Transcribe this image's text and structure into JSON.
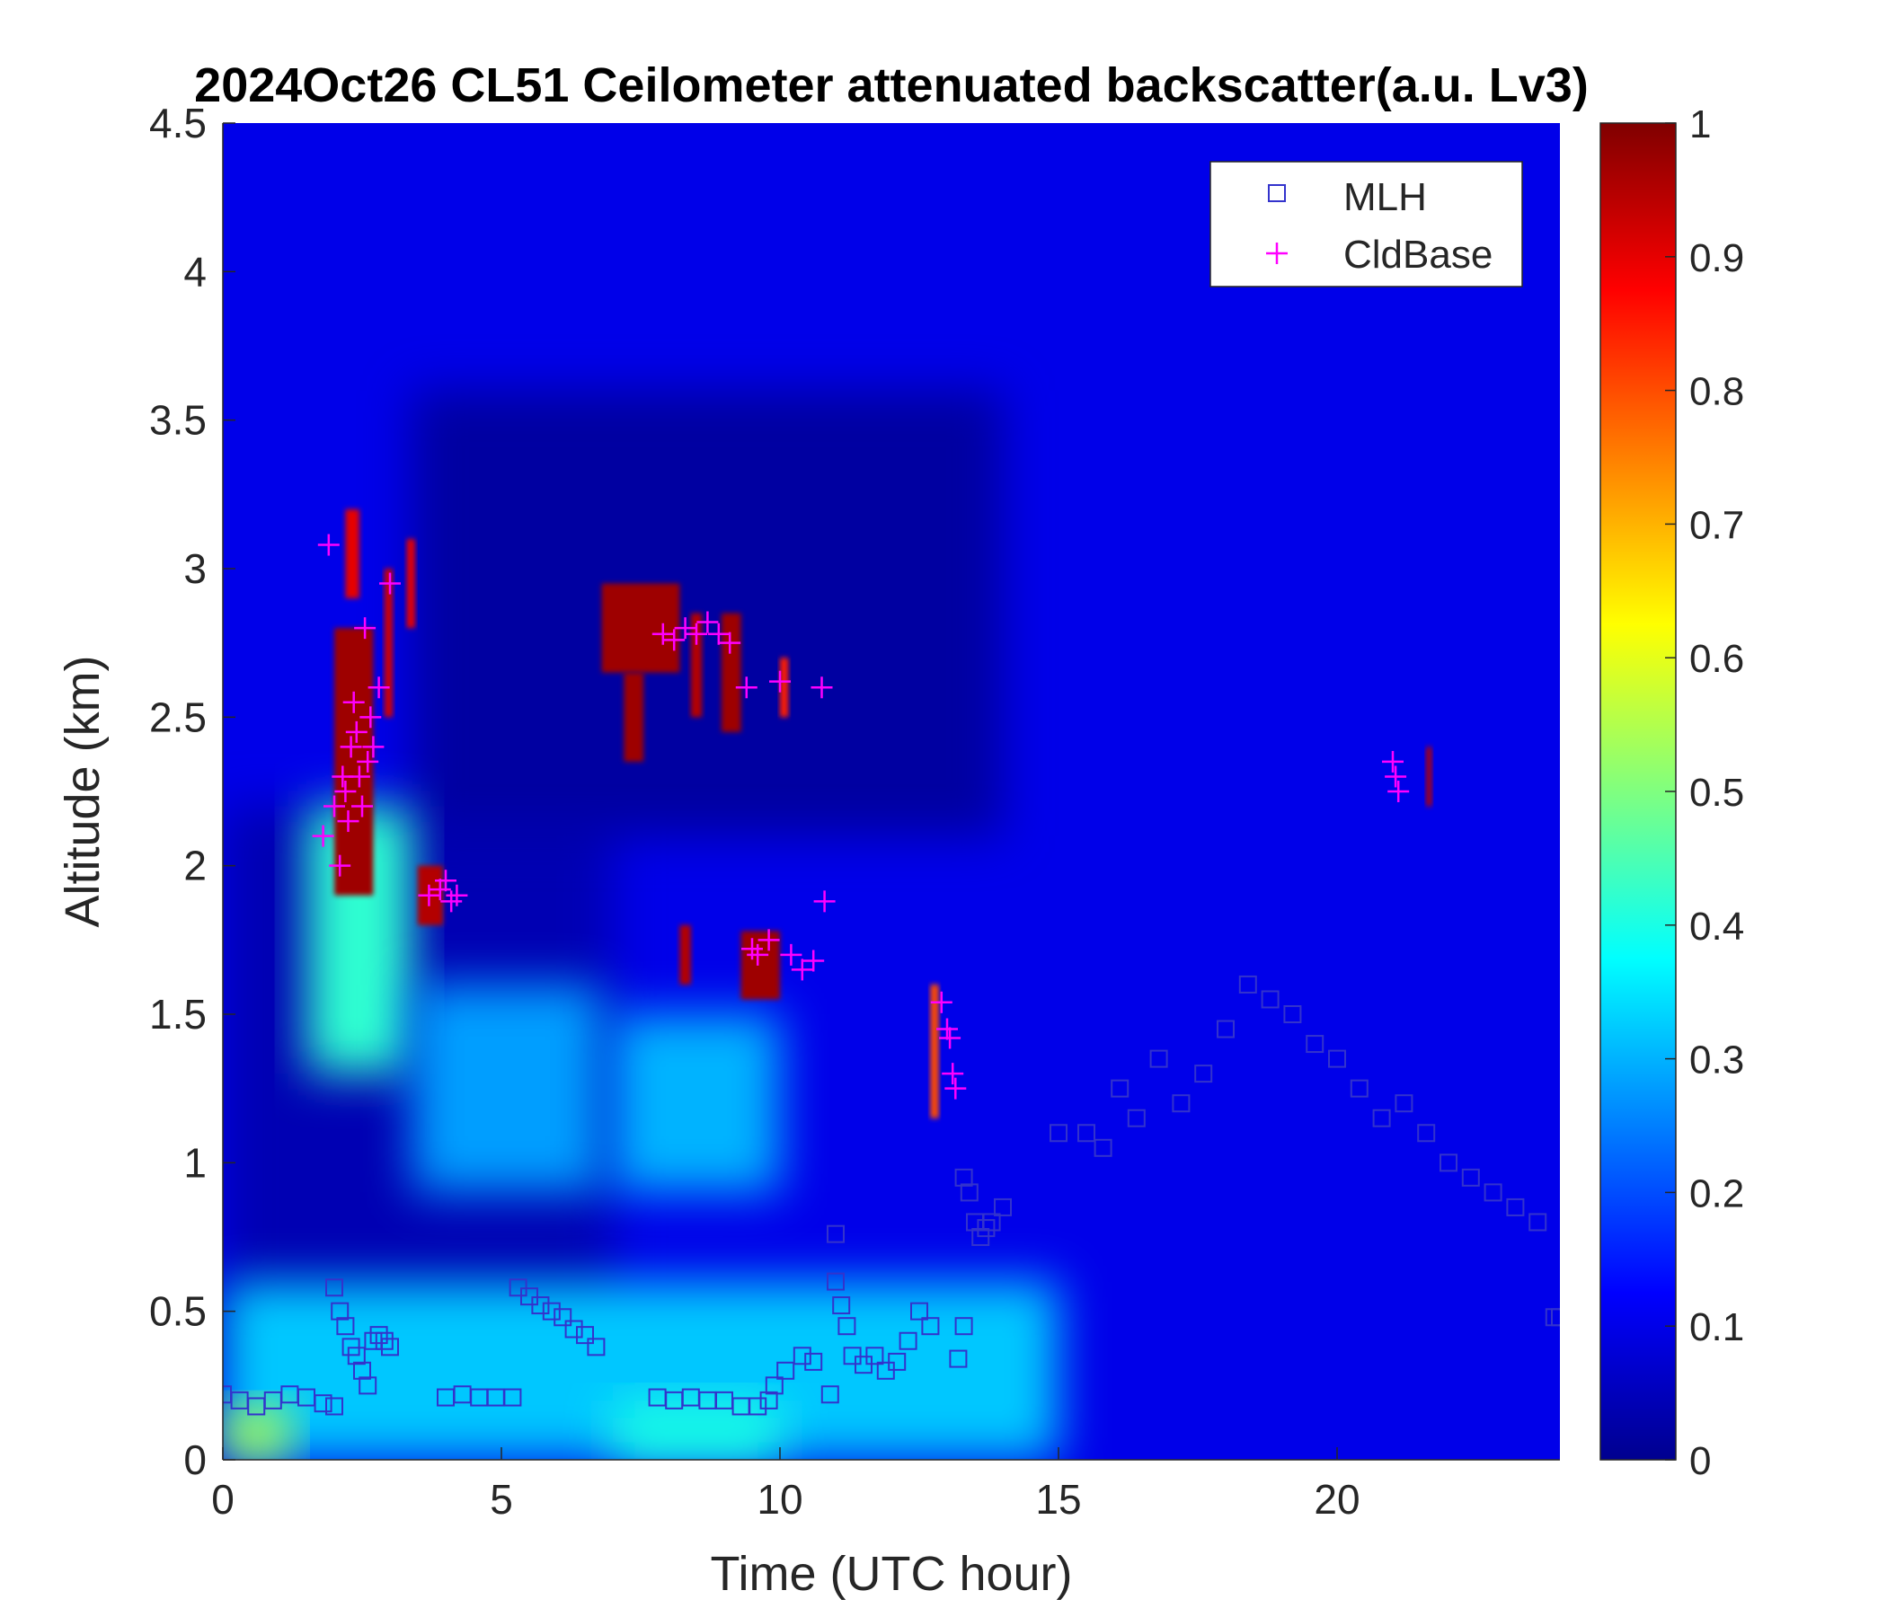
{
  "chart_data": {
    "type": "heatmap",
    "title": "2024Oct26 CL51 Ceilometer attenuated backscatter(a.u. Lv3)",
    "xlabel": "Time (UTC hour)",
    "ylabel": "Altitude (km)",
    "xlim": [
      0,
      24
    ],
    "ylim": [
      0,
      4.5
    ],
    "x_ticks": [
      0,
      5,
      10,
      15,
      20
    ],
    "y_ticks": [
      0,
      0.5,
      1,
      1.5,
      2,
      2.5,
      3,
      3.5,
      4,
      4.5
    ],
    "y_tick_labels": [
      "0",
      "0.5",
      "1",
      "1.5",
      "2",
      "2.5",
      "3",
      "3.5",
      "4",
      "4.5"
    ],
    "colorbar": {
      "range": [
        0,
        1
      ],
      "ticks": [
        0,
        0.1,
        0.2,
        0.3,
        0.4,
        0.5,
        0.6,
        0.7,
        0.8,
        0.9,
        1
      ],
      "tick_labels": [
        "0",
        "0.1",
        "0.2",
        "0.3",
        "0.4",
        "0.5",
        "0.6",
        "0.7",
        "0.8",
        "0.9",
        "1"
      ],
      "colormap": "jet"
    },
    "legend": {
      "placement": "top-right",
      "entries": [
        {
          "label": "MLH",
          "marker": "square",
          "color": "#3333cc"
        },
        {
          "label": "CldBase",
          "marker": "plus",
          "color": "#ff00ff"
        }
      ]
    },
    "backscatter_features": [
      {
        "x0": 0,
        "x1": 24,
        "y0": 0,
        "y1": 4.5,
        "value": 0.1,
        "note": "background"
      },
      {
        "x0": 0,
        "x1": 7,
        "y0": 0.3,
        "y1": 2.2,
        "value": 0.04,
        "note": "dark band"
      },
      {
        "x0": 3.4,
        "x1": 14,
        "y0": 2.1,
        "y1": 3.6,
        "value": 0.02,
        "note": "dark band"
      },
      {
        "x0": 0,
        "x1": 15,
        "y0": 0,
        "y1": 0.6,
        "value": 0.32
      },
      {
        "x0": 0,
        "x1": 1.2,
        "y0": 0,
        "y1": 0.18,
        "value": 0.55
      },
      {
        "x0": 7,
        "x1": 10,
        "y0": 0,
        "y1": 0.2,
        "value": 0.4
      },
      {
        "x0": 1.5,
        "x1": 3.4,
        "y0": 1.3,
        "y1": 2.2,
        "value": 0.42
      },
      {
        "x0": 3.4,
        "x1": 6.8,
        "y0": 0.9,
        "y1": 1.6,
        "value": 0.28
      },
      {
        "x0": 7,
        "x1": 10,
        "y0": 0.9,
        "y1": 1.5,
        "value": 0.3
      },
      {
        "x0": 2.0,
        "x1": 2.7,
        "y0": 1.9,
        "y1": 2.8,
        "value": 0.97
      },
      {
        "x0": 2.2,
        "x1": 2.45,
        "y0": 2.9,
        "y1": 3.2,
        "value": 0.9
      },
      {
        "x0": 2.9,
        "x1": 3.05,
        "y0": 2.5,
        "y1": 3.0,
        "value": 0.92
      },
      {
        "x0": 3.3,
        "x1": 3.45,
        "y0": 2.8,
        "y1": 3.1,
        "value": 0.9
      },
      {
        "x0": 3.5,
        "x1": 3.95,
        "y0": 1.8,
        "y1": 2.0,
        "value": 0.95
      },
      {
        "x0": 6.8,
        "x1": 8.2,
        "y0": 2.65,
        "y1": 2.95,
        "value": 0.97
      },
      {
        "x0": 7.2,
        "x1": 7.55,
        "y0": 2.35,
        "y1": 2.65,
        "value": 0.97
      },
      {
        "x0": 8.2,
        "x1": 8.4,
        "y0": 1.6,
        "y1": 1.8,
        "value": 0.95
      },
      {
        "x0": 8.4,
        "x1": 8.6,
        "y0": 2.5,
        "y1": 2.85,
        "value": 0.95
      },
      {
        "x0": 8.95,
        "x1": 9.3,
        "y0": 2.45,
        "y1": 2.85,
        "value": 0.97
      },
      {
        "x0": 9.3,
        "x1": 10.0,
        "y0": 1.55,
        "y1": 1.78,
        "value": 0.97
      },
      {
        "x0": 10.0,
        "x1": 10.15,
        "y0": 2.5,
        "y1": 2.7,
        "value": 0.85
      },
      {
        "x0": 12.7,
        "x1": 12.85,
        "y0": 1.15,
        "y1": 1.6,
        "value": 0.8
      },
      {
        "x0": 21.6,
        "x1": 21.7,
        "y0": 2.2,
        "y1": 2.4,
        "value": 0.95
      }
    ],
    "series": [
      {
        "name": "MLH",
        "marker": "square",
        "x": [
          0,
          0.3,
          0.6,
          0.9,
          1.2,
          1.5,
          1.8,
          2.0,
          2.0,
          2.1,
          2.2,
          2.3,
          2.4,
          2.5,
          2.6,
          2.7,
          2.8,
          2.9,
          3.0,
          4.0,
          4.3,
          4.6,
          4.9,
          5.2,
          5.3,
          5.5,
          5.7,
          5.9,
          6.1,
          6.3,
          6.5,
          6.7,
          7.8,
          8.1,
          8.4,
          8.7,
          9.0,
          9.3,
          9.6,
          9.8,
          9.9,
          10.1,
          10.4,
          10.6,
          10.9,
          11.0,
          11.0,
          11.1,
          11.2,
          11.3,
          11.5,
          11.7,
          11.9,
          12.1,
          12.3,
          12.5,
          12.7,
          13.2,
          13.3,
          13.3,
          13.4,
          13.5,
          13.6,
          13.7,
          13.8,
          14.0,
          15.0,
          15.5,
          15.8,
          16.1,
          16.4,
          16.8,
          17.2,
          17.6,
          18.0,
          18.4,
          18.8,
          19.2,
          19.6,
          20.0,
          20.4,
          20.8,
          21.2,
          21.6,
          22.0,
          22.4,
          22.8,
          23.2,
          23.6,
          23.9,
          24.0
        ],
        "y": [
          0.22,
          0.2,
          0.18,
          0.2,
          0.22,
          0.21,
          0.19,
          0.18,
          0.58,
          0.5,
          0.45,
          0.38,
          0.35,
          0.3,
          0.25,
          0.4,
          0.42,
          0.4,
          0.38,
          0.21,
          0.22,
          0.21,
          0.21,
          0.21,
          0.58,
          0.55,
          0.52,
          0.5,
          0.48,
          0.44,
          0.42,
          0.38,
          0.21,
          0.2,
          0.21,
          0.2,
          0.2,
          0.18,
          0.18,
          0.2,
          0.25,
          0.3,
          0.35,
          0.33,
          0.22,
          0.76,
          0.6,
          0.52,
          0.45,
          0.35,
          0.32,
          0.35,
          0.3,
          0.33,
          0.4,
          0.5,
          0.45,
          0.34,
          0.45,
          0.95,
          0.9,
          0.8,
          0.75,
          0.78,
          0.8,
          0.85,
          1.1,
          1.1,
          1.05,
          1.25,
          1.15,
          1.35,
          1.2,
          1.3,
          1.45,
          1.6,
          1.55,
          1.5,
          1.4,
          1.35,
          1.25,
          1.15,
          1.2,
          1.1,
          1.0,
          0.95,
          0.9,
          0.85,
          0.8,
          0.48,
          0.48
        ]
      },
      {
        "name": "CldBase",
        "marker": "plus",
        "x": [
          1.8,
          1.9,
          2.0,
          2.1,
          2.15,
          2.2,
          2.25,
          2.3,
          2.35,
          2.4,
          2.45,
          2.5,
          2.55,
          2.6,
          2.65,
          2.7,
          2.8,
          3.0,
          3.7,
          3.9,
          4.0,
          4.1,
          4.2,
          7.9,
          8.1,
          8.3,
          8.5,
          8.7,
          8.9,
          9.1,
          9.4,
          9.5,
          9.6,
          9.8,
          10.0,
          10.2,
          10.4,
          10.6,
          10.75,
          10.8,
          12.9,
          13.0,
          13.05,
          13.1,
          13.15,
          21.0,
          21.05,
          21.1
        ],
        "y": [
          2.1,
          3.08,
          2.2,
          2.0,
          2.3,
          2.25,
          2.15,
          2.4,
          2.55,
          2.45,
          2.3,
          2.2,
          2.8,
          2.35,
          2.5,
          2.4,
          2.6,
          2.95,
          1.9,
          1.92,
          1.95,
          1.88,
          1.9,
          2.78,
          2.76,
          2.8,
          2.78,
          2.82,
          2.78,
          2.75,
          2.6,
          1.72,
          1.7,
          1.75,
          2.62,
          1.7,
          1.65,
          1.68,
          2.6,
          1.88,
          1.54,
          1.45,
          1.42,
          1.3,
          1.25,
          2.35,
          2.3,
          2.25
        ]
      }
    ]
  }
}
